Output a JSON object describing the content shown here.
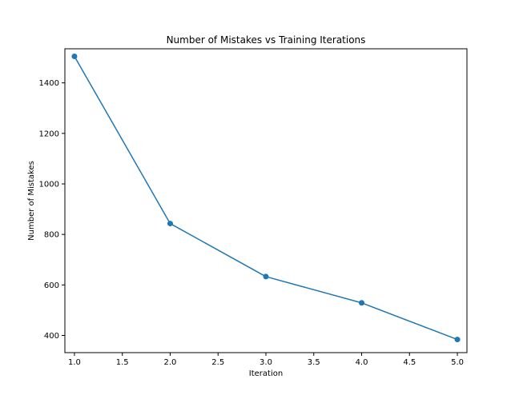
{
  "chart_data": {
    "type": "line",
    "title": "Number of Mistakes vs Training Iterations",
    "xlabel": "Iteration",
    "ylabel": "Number of Mistakes",
    "xlim": [
      0.9,
      5.1
    ],
    "ylim": [
      332,
      1535
    ],
    "xticks": [
      1.0,
      1.5,
      2.0,
      2.5,
      3.0,
      3.5,
      4.0,
      4.5,
      5.0
    ],
    "xtick_labels": [
      "1.0",
      "1.5",
      "2.0",
      "2.5",
      "3.0",
      "3.5",
      "4.0",
      "4.5",
      "5.0"
    ],
    "yticks": [
      400,
      600,
      800,
      1000,
      1200,
      1400
    ],
    "ytick_labels": [
      "400",
      "600",
      "800",
      "1000",
      "1200",
      "1400"
    ],
    "grid": false,
    "series": [
      {
        "x": [
          1,
          2,
          3,
          4,
          5
        ],
        "values": [
          1505,
          843,
          633,
          529,
          384
        ],
        "color": "#1f77b4",
        "marker": "circle"
      }
    ]
  }
}
